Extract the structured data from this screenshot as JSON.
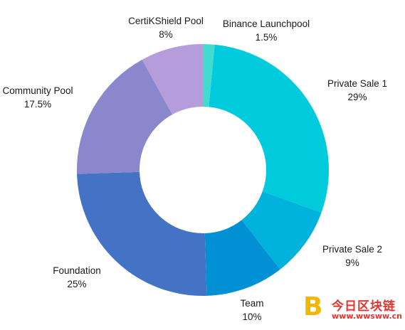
{
  "chart_data": {
    "type": "pie",
    "variant": "donut",
    "legend": "none",
    "start": "top",
    "direction": "clockwise",
    "slices": [
      {
        "label": "Binance Launchpool",
        "value_label": "1.5%",
        "value": 1.5,
        "color": "#41dcd0"
      },
      {
        "label": "Private Sale 1",
        "value_label": "29%",
        "value": 29,
        "color": "#00cbdc"
      },
      {
        "label": "Private Sale 2",
        "value_label": "9%",
        "value": 9,
        "color": "#00b2dc"
      },
      {
        "label": "Team",
        "value_label": "10%",
        "value": 10,
        "color": "#0090d3"
      },
      {
        "label": "Foundation",
        "value_label": "25%",
        "value": 25,
        "color": "#4472c4"
      },
      {
        "label": "Community Pool",
        "value_label": "17.5%",
        "value": 17.5,
        "color": "#8a87cc"
      },
      {
        "label": "CertiKShield Pool",
        "value_label": "8%",
        "value": 8,
        "color": "#b59ddb"
      }
    ]
  },
  "watermark": {
    "logo_letter": "B",
    "text": "今日区块链",
    "url": "www.wwsww.cn"
  }
}
